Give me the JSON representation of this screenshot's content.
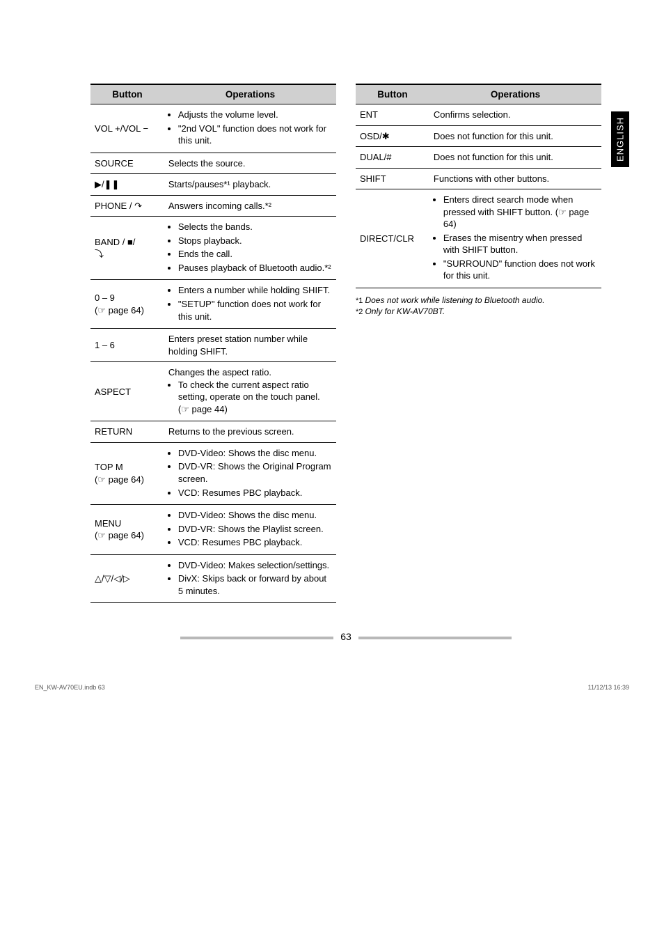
{
  "sideTab": "ENGLISH",
  "headers": {
    "button": "Button",
    "operations": "Operations"
  },
  "leftTable": [
    {
      "btn": "VOL +/VOL −",
      "ops": {
        "type": "list",
        "items": [
          "Adjusts the volume level.",
          "\"2nd VOL\" function does not work for this unit."
        ]
      }
    },
    {
      "btn": "SOURCE",
      "ops": {
        "type": "text",
        "text": "Selects the source."
      }
    },
    {
      "btn": "▶/❚❚",
      "ops": {
        "type": "text",
        "text": "Starts/pauses*¹ playback."
      }
    },
    {
      "btn": "PHONE / ↷",
      "ops": {
        "type": "text",
        "text": "Answers incoming calls.*²"
      }
    },
    {
      "btn": "BAND / ■/\n⤵",
      "ops": {
        "type": "list",
        "items": [
          "Selects the bands.",
          "Stops playback.",
          "Ends the call.",
          "Pauses playback of Bluetooth audio.*²"
        ]
      }
    },
    {
      "btn": "0 – 9\n(☞ page 64)",
      "ops": {
        "type": "list",
        "items": [
          "Enters a number while holding SHIFT.",
          "\"SETUP\" function does not work for this unit."
        ]
      }
    },
    {
      "btn": "1 – 6",
      "ops": {
        "type": "text",
        "text": "Enters preset station number while holding SHIFT."
      }
    },
    {
      "btn": "ASPECT",
      "ops": {
        "type": "mixed",
        "lead": "Changes the aspect ratio.",
        "items": [
          "To check the current aspect ratio setting, operate on the touch panel. (☞ page 44)"
        ]
      }
    },
    {
      "btn": "RETURN",
      "ops": {
        "type": "text",
        "text": "Returns to the previous screen."
      }
    },
    {
      "btn": "TOP M\n(☞ page 64)",
      "ops": {
        "type": "list",
        "items": [
          "DVD-Video: Shows the disc menu.",
          "DVD-VR: Shows the Original Program screen.",
          "VCD: Resumes PBC playback."
        ]
      }
    },
    {
      "btn": "MENU\n(☞ page 64)",
      "ops": {
        "type": "list",
        "items": [
          "DVD-Video: Shows the disc menu.",
          "DVD-VR: Shows the Playlist screen.",
          "VCD: Resumes PBC playback."
        ]
      }
    },
    {
      "btn": "△/▽/◁/▷",
      "ops": {
        "type": "list",
        "items": [
          "DVD-Video: Makes selection/settings.",
          "DivX: Skips back or forward by about 5 minutes."
        ]
      }
    }
  ],
  "rightTable": [
    {
      "btn": "ENT",
      "ops": {
        "type": "text",
        "text": "Confirms selection."
      }
    },
    {
      "btn": "OSD/✱",
      "ops": {
        "type": "text",
        "text": "Does not function for this unit."
      }
    },
    {
      "btn": "DUAL/#",
      "ops": {
        "type": "text",
        "text": "Does not function for this unit."
      }
    },
    {
      "btn": "SHIFT",
      "ops": {
        "type": "text",
        "text": "Functions with other buttons."
      }
    },
    {
      "btn": "DIRECT/CLR",
      "ops": {
        "type": "list",
        "items": [
          "Enters direct search mode when pressed with SHIFT button. (☞ page 64)",
          "Erases the misentry when pressed with SHIFT button.",
          "\"SURROUND\" function does not work for this unit."
        ]
      }
    }
  ],
  "footnotes": [
    {
      "mark": "*1",
      "text": "Does not work while listening to Bluetooth audio."
    },
    {
      "mark": "*2",
      "text": "Only for KW-AV70BT."
    }
  ],
  "pageNumber": "63",
  "footer": {
    "left": "EN_KW-AV70EU.indb   63",
    "right": "11/12/13   16:39"
  }
}
